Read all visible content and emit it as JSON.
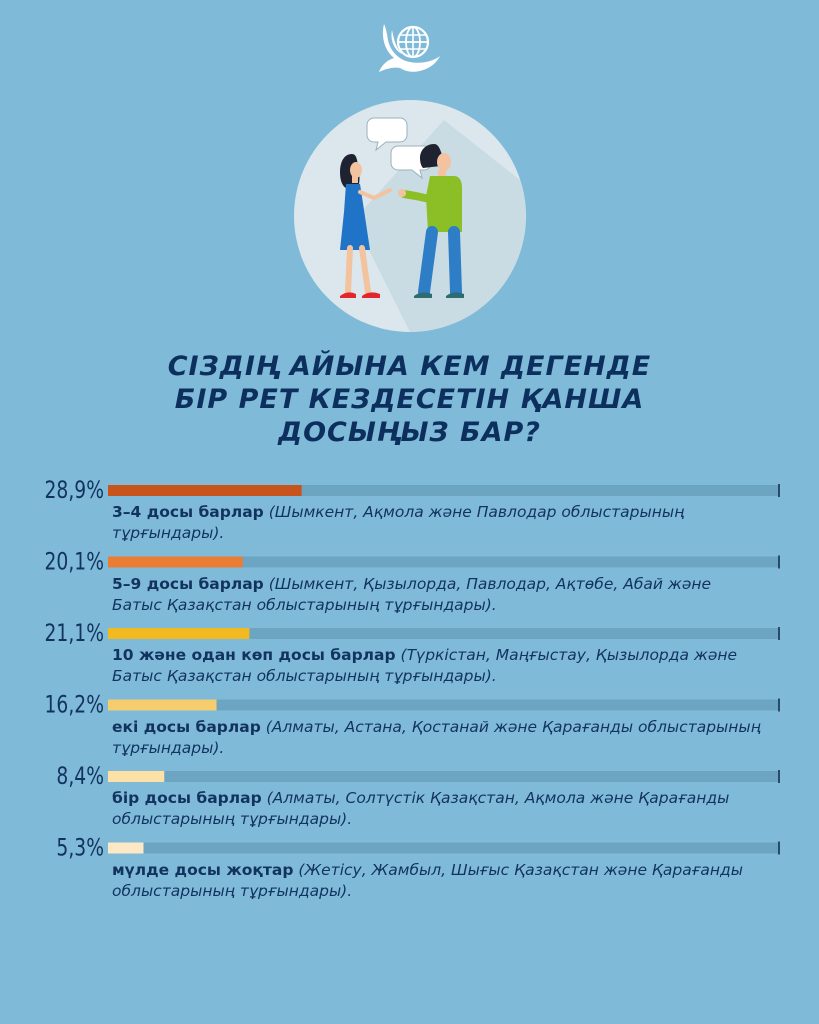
{
  "title_lines": [
    "СІЗДІҢ АЙЫНА КЕМ ДЕГЕНДЕ",
    "БІР РЕТ КЕЗДЕСЕТІН ҚАНША",
    "ДОСЫҢЫЗ БАР?"
  ],
  "colors": {
    "background": "#7fbbd9",
    "track": "#6ba5c2",
    "text": "#13335f"
  },
  "items": [
    {
      "pct_text": "28,9%",
      "label": "3–4 досы барлар",
      "note": "(Шымкент, Ақмола және Павлодар облыстарының тұрғындары)."
    },
    {
      "pct_text": "20,1%",
      "label": "5–9 досы барлар",
      "note": "(Шымкент, Қызылорда, Павлодар, Ақтөбе, Абай және Батыс Қазақстан облыстарының тұрғындары)."
    },
    {
      "pct_text": "21,1%",
      "label": "10 және одан көп досы барлар",
      "note": "(Түркістан, Маңғыстау, Қызылорда және Батыс Қазақстан облыстарының тұрғындары)."
    },
    {
      "pct_text": "16,2%",
      "label": "екі досы барлар",
      "note": "(Алматы, Астана, Қостанай және Қарағанды облыстарының тұрғындары)."
    },
    {
      "pct_text": "8,4%",
      "label": "бір досы барлар",
      "note": "(Алматы, Солтүстік Қазақстан, Ақмола және Қарағанды облыстарының тұрғындары)."
    },
    {
      "pct_text": "5,3%",
      "label": "мүлде досы жоқтар",
      "note": "(Жетісу, Жамбыл, Шығыс Қазақстан және Қарағанды облыстарының тұрғындары)."
    }
  ],
  "chart_data": {
    "type": "bar",
    "orientation": "horizontal",
    "categories": [
      "3–4 досы барлар",
      "5–9 досы барлар",
      "10 және одан көп досы барлар",
      "екі досы барлар",
      "бір досы барлар",
      "мүлде досы жоқтар"
    ],
    "values": [
      28.9,
      20.1,
      21.1,
      16.2,
      8.4,
      5.3
    ],
    "value_labels": [
      "28,9%",
      "20,1%",
      "21,1%",
      "16,2%",
      "8,4%",
      "5,3%"
    ],
    "bar_colors": [
      "#c8541d",
      "#ea7c33",
      "#f2b921",
      "#f6cd6e",
      "#fde0a6",
      "#fde8c6"
    ],
    "xlim": [
      0,
      100
    ],
    "grid": false,
    "legend": "none"
  }
}
